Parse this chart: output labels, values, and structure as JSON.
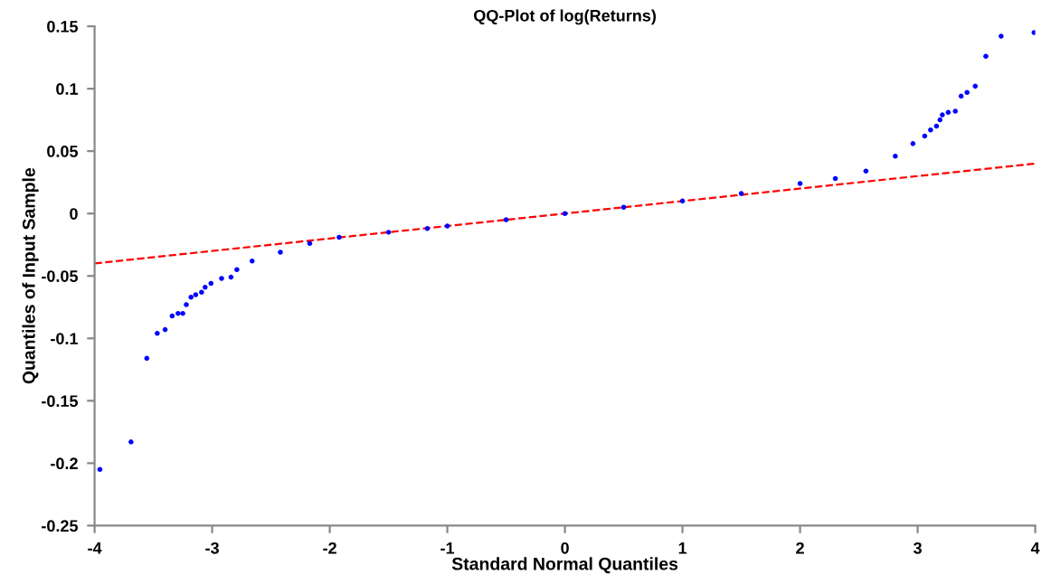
{
  "chart_data": {
    "type": "scatter",
    "title": "QQ-Plot of log(Returns)",
    "xlabel": "Standard Normal Quantiles",
    "ylabel": "Quantiles of Input Sample",
    "xlim": [
      -4,
      4
    ],
    "ylim": [
      -0.25,
      0.15
    ],
    "xticks": [
      -4,
      -3,
      -2,
      -1,
      0,
      1,
      2,
      3,
      4
    ],
    "yticks": [
      -0.25,
      -0.2,
      -0.15,
      -0.1,
      -0.05,
      0,
      0.05,
      0.1,
      0.15
    ],
    "grid": false,
    "legend": false,
    "marker": "circle",
    "series": [
      {
        "color": "#0000ff",
        "x": [
          -3.955,
          -3.69,
          -3.556,
          -3.467,
          -3.4,
          -3.34,
          -3.29,
          -3.25,
          -3.22,
          -3.18,
          -3.14,
          -3.09,
          -3.06,
          -3.01,
          -2.92,
          -2.84,
          -2.79,
          -2.66,
          -2.42,
          -2.17,
          -1.92,
          -1.5,
          -1.17,
          -1.0,
          -0.5,
          0.0,
          0.5,
          1.0,
          1.5,
          2.0,
          2.3,
          2.56,
          2.81,
          2.96,
          3.06,
          3.11,
          3.16,
          3.19,
          3.21,
          3.26,
          3.32,
          3.37,
          3.42,
          3.49,
          3.58,
          3.71,
          3.99
        ],
        "values": [
          -0.205,
          -0.183,
          -0.116,
          -0.096,
          -0.093,
          -0.082,
          -0.08,
          -0.08,
          -0.073,
          -0.067,
          -0.065,
          -0.063,
          -0.059,
          -0.056,
          -0.052,
          -0.051,
          -0.045,
          -0.038,
          -0.031,
          -0.024,
          -0.019,
          -0.015,
          -0.012,
          -0.01,
          -0.005,
          0.0,
          0.005,
          0.01,
          0.016,
          0.024,
          0.028,
          0.034,
          0.046,
          0.056,
          0.062,
          0.067,
          0.07,
          0.075,
          0.079,
          0.081,
          0.082,
          0.094,
          0.097,
          0.102,
          0.126,
          0.142,
          0.145
        ]
      },
      {
        "type": "line",
        "color": "#ff0000",
        "line_style": "dashed",
        "marker": "none",
        "x": [
          -4,
          4
        ],
        "values": [
          -0.04,
          0.04
        ]
      }
    ]
  }
}
